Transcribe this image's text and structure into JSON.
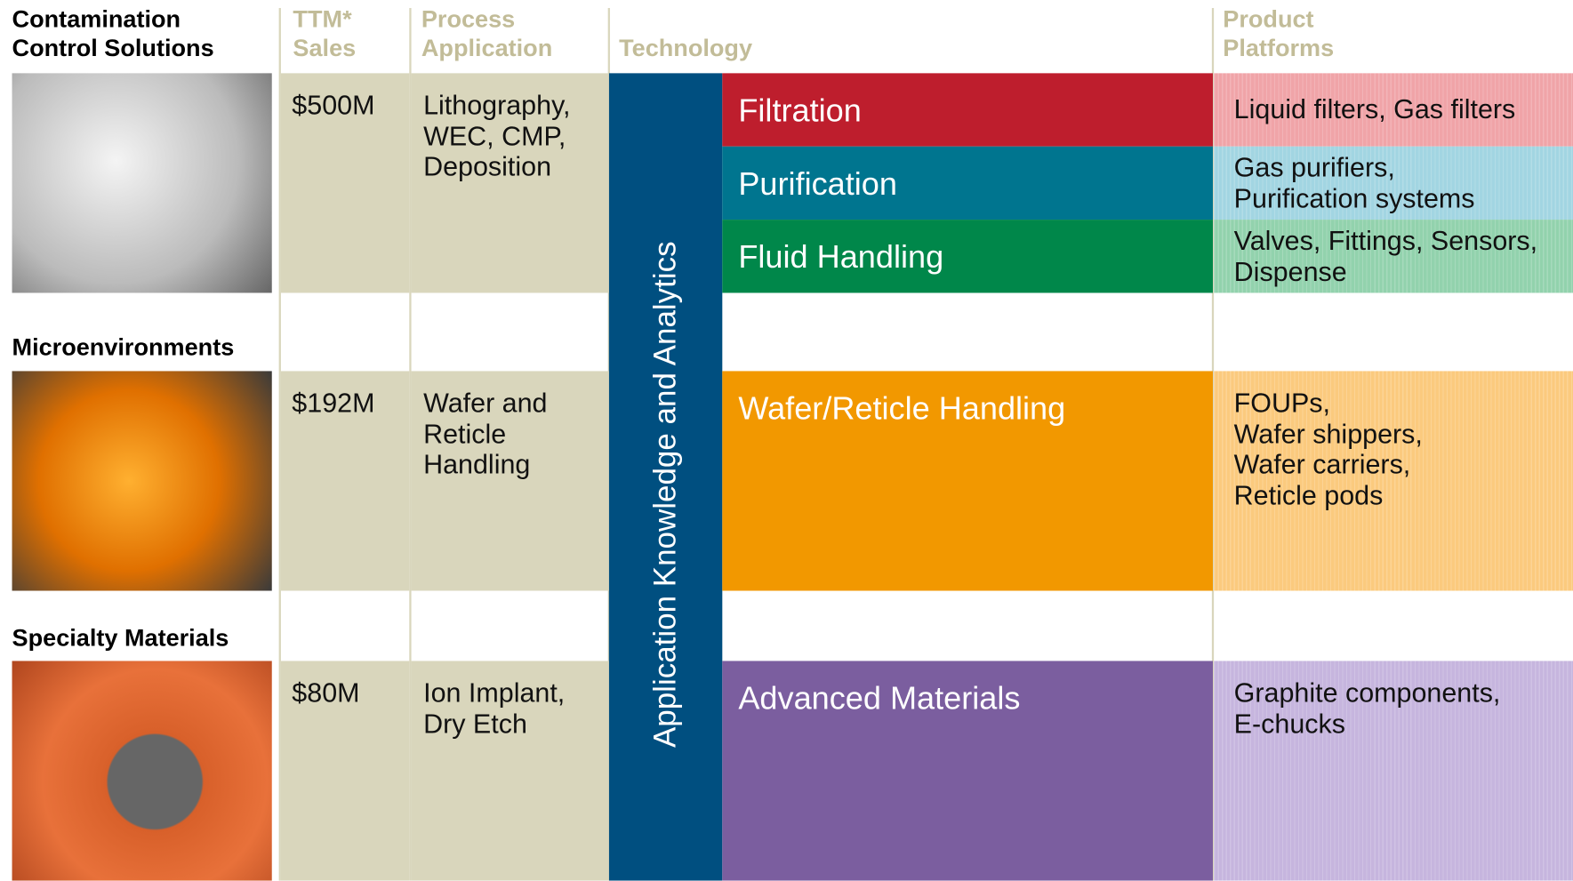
{
  "headers": [
    [
      "TTM*",
      "Sales"
    ],
    [
      "Process",
      "Application"
    ],
    [
      "Technology"
    ],
    [
      "Product",
      "Platforms"
    ]
  ],
  "band_label": "Application Knowledge and Analytics",
  "segments": [
    {
      "name": [
        "Contamination",
        "Control Solutions"
      ],
      "sales": "$500M",
      "process": [
        "Lithography,",
        "WEC, CMP,",
        "Deposition"
      ],
      "rows": [
        {
          "technology": "Filtration",
          "platforms": [
            "Liquid filters, Gas filters"
          ]
        },
        {
          "technology": "Purification",
          "platforms": [
            "Gas purifiers,",
            "Purification systems"
          ]
        },
        {
          "technology": "Fluid Handling",
          "platforms": [
            "Valves, Fittings, Sensors,",
            "Dispense"
          ]
        }
      ]
    },
    {
      "name": [
        "Microenvironments"
      ],
      "sales": "$192M",
      "process": [
        "Wafer and",
        "Reticle",
        "Handling"
      ],
      "rows": [
        {
          "technology": "Wafer/Reticle Handling",
          "platforms": [
            "FOUPs,",
            "Wafer shippers,",
            "Wafer carriers,",
            "Reticle pods"
          ]
        }
      ]
    },
    {
      "name": [
        "Specialty Materials"
      ],
      "sales": "$80M",
      "process": [
        "Ion Implant,",
        "Dry Etch"
      ],
      "rows": [
        {
          "technology": "Advanced Materials",
          "platforms": [
            "Graphite components,",
            "E-chucks"
          ]
        }
      ]
    }
  ]
}
